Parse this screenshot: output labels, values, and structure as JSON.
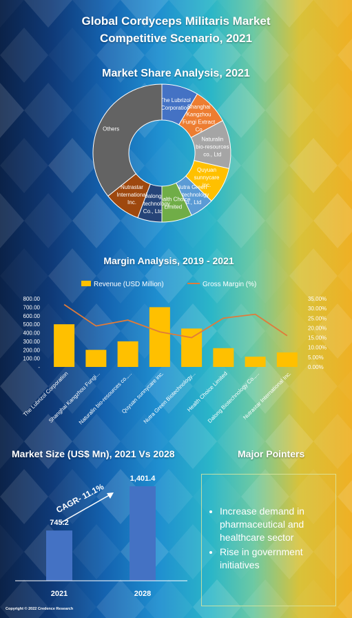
{
  "title_line1": "Global Cordyceps Militaris Market",
  "title_line2": "Competitive Scenario, 2021",
  "copyright": "Copyright © 2022 Credence Research",
  "colors": {
    "blue": "#4472c4",
    "orange": "#ed7d31",
    "gray": "#a5a5a5",
    "yellow": "#ffc000",
    "lightblue": "#5b9bd5",
    "green": "#70ad47",
    "darkblue": "#264478",
    "brown": "#9e480e",
    "darkgray": "#636363"
  },
  "chart_data": [
    {
      "type": "pie",
      "title": "Market Share Analysis, 2021",
      "labels": [
        "The Lubrizol Corporation",
        "Shanghai Kangzhou Fungi Extract Co",
        "Naturalin bio-resources co., Ltd",
        "Quyuan sunnycare inc.",
        "Nutra Green Biotechnology Co., Ltd",
        "Health Choice Limited",
        "Dalong Biotechnology Co., Ltd",
        "Nutrastar International Inc.",
        "Others"
      ],
      "slice_labels": [
        "The Lubrizol Corporation",
        "Shanghai Kangzhou Fungi Extract Co",
        "Naturalin bio-resources co., Ltd",
        "Quyuan sunnycare inc.",
        "Nutra Green Biotechnology Co., Ltd",
        "Health Choice Limited",
        "Dalong Biotechnology Co., Ltd",
        "Nutrastar International Inc.",
        "Others"
      ],
      "values": [
        8.6,
        8.6,
        11.4,
        8.6,
        5.7,
        7.1,
        5.7,
        8.6,
        35.7
      ]
    },
    {
      "type": "bar",
      "title": "Margin Analysis, 2019 - 2021",
      "categories": [
        "The Lubrizol Corporation",
        "Shanghai Kangzhou Fungi...",
        "Naturalin bio-resources co.,...",
        "Quyuan sunnycare inc.",
        "Nutra Green Biotechnology...",
        "Health Choice Limited",
        "Dalong Biotechnology Co.,...",
        "Nutrastar International Inc."
      ],
      "series": [
        {
          "name": "Revenue (USD Million)",
          "type": "bar",
          "values": [
            500,
            200,
            300,
            700,
            450,
            220,
            120,
            170
          ]
        },
        {
          "name": "Gross Margin (%)",
          "type": "line",
          "axis": "right",
          "values": [
            32,
            21,
            24,
            18,
            15,
            25,
            27,
            16
          ]
        }
      ],
      "ylim": [
        0,
        800
      ],
      "yticks": [
        "-",
        "100.00",
        "200.00",
        "300.00",
        "400.00",
        "500.00",
        "600.00",
        "700.00",
        "800.00"
      ],
      "y2lim": [
        0,
        35
      ],
      "y2ticks": [
        "0.00%",
        "5.00%",
        "10.00%",
        "15.00%",
        "20.00%",
        "25.00%",
        "30.00%",
        "35.00%"
      ]
    },
    {
      "type": "bar",
      "title": "Market Size (US$ Mn), 2021 Vs 2028",
      "categories": [
        "2021",
        "2028"
      ],
      "values": [
        745.2,
        1401.4
      ],
      "data_labels": [
        "745.2",
        "1,401.4"
      ],
      "annotation": "CAGR- 11.1%"
    }
  ],
  "pointers": {
    "title": "Major Pointers",
    "items": [
      "Increase demand in pharmaceutical and healthcare sector",
      "Rise in government initiatives"
    ]
  }
}
